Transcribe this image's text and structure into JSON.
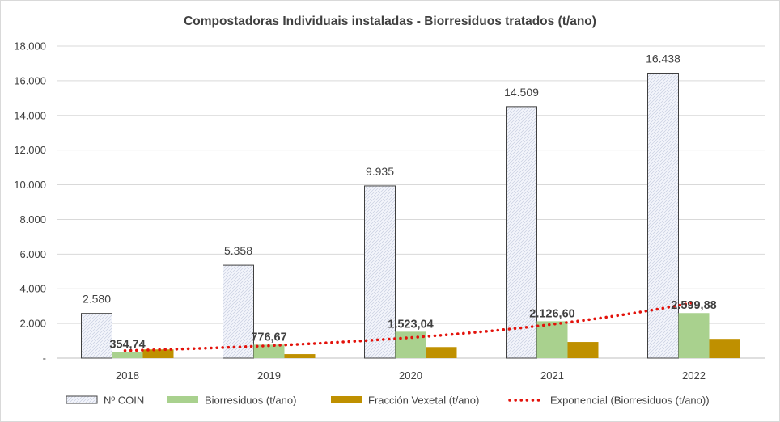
{
  "chart_data": {
    "type": "bar",
    "title": "Compostadoras Individuais instaladas - Biorresiduos tratados (t/ano)",
    "categories": [
      "2018",
      "2019",
      "2020",
      "2021",
      "2022"
    ],
    "y_ticks": [
      "-",
      "2.000",
      "4.000",
      "6.000",
      "8.000",
      "10.000",
      "12.000",
      "14.000",
      "16.000",
      "18.000"
    ],
    "ylim": [
      0,
      18000
    ],
    "series": [
      {
        "name": "Nº COIN",
        "values": [
          2580,
          5358,
          9935,
          14509,
          16438
        ],
        "labels": [
          "2.580",
          "5.358",
          "9.935",
          "14.509",
          "16.438"
        ],
        "fill": "#f4f6fb",
        "stroke": "#404040"
      },
      {
        "name": "Biorresiduos (t/ano)",
        "values": [
          354.74,
          776.67,
          1523.04,
          2126.6,
          2599.88
        ],
        "labels": [
          "354,74",
          "776,67",
          "1.523,04",
          "2.126,60",
          "2.599,88"
        ],
        "fill": "#a9d18e"
      },
      {
        "name": "Fracción Vexetal (t/ano)",
        "values": [
          500,
          230,
          640,
          930,
          1110
        ],
        "fill": "#bf9000"
      }
    ],
    "trendline": {
      "name": "Exponencial (Biorresiduos (t/ano))",
      "type": "exponential",
      "of_series": "Biorresiduos (t/ano)",
      "color": "#e3120b"
    },
    "legend_position": "bottom",
    "grid": true
  }
}
